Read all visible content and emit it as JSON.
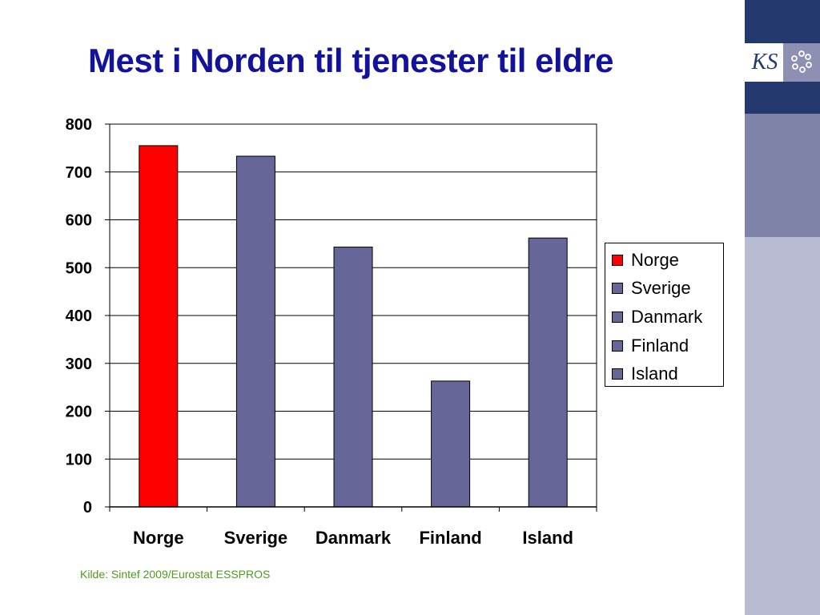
{
  "slide": {
    "title": "Mest i Norden til tjenester til eldre",
    "source": "Kilde: Sintef 2009/Eurostat ESSPROS",
    "logo_text": "KS"
  },
  "colors": {
    "title": "#12129a",
    "highlight_bar": "#ff0000",
    "bar": "#666699",
    "source_text": "#4f9a1f",
    "sidebar_navy": "#243a6e",
    "sidebar_mid": "#7f83a8",
    "sidebar_light": "#b9bbd2"
  },
  "chart_data": {
    "type": "bar",
    "categories": [
      "Norge",
      "Sverige",
      "Danmark",
      "Finland",
      "Island"
    ],
    "values": [
      755,
      733,
      543,
      263,
      562
    ],
    "bar_colors": [
      "#ff0000",
      "#666699",
      "#666699",
      "#666699",
      "#666699"
    ],
    "ylim": [
      0,
      800
    ],
    "yticks": [
      0,
      100,
      200,
      300,
      400,
      500,
      600,
      700,
      800
    ],
    "grid": true,
    "legend_position": "right",
    "legend": [
      {
        "label": "Norge",
        "color": "#ff0000"
      },
      {
        "label": "Sverige",
        "color": "#666699"
      },
      {
        "label": "Danmark",
        "color": "#666699"
      },
      {
        "label": "Finland",
        "color": "#666699"
      },
      {
        "label": "Island",
        "color": "#666699"
      }
    ],
    "title": "",
    "xlabel": "",
    "ylabel": ""
  }
}
